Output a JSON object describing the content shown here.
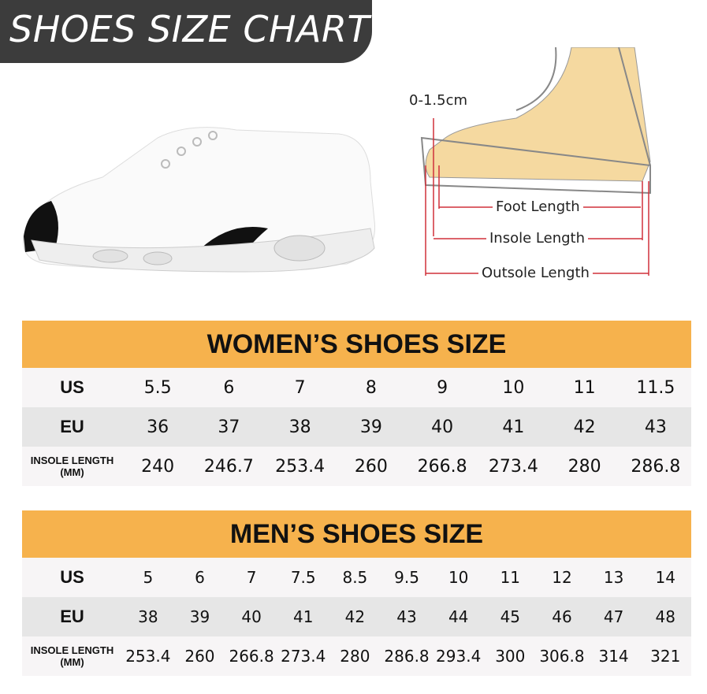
{
  "banner": {
    "title": "SHOES SIZE CHART"
  },
  "diagram": {
    "toe_gap": "0-1.5cm",
    "foot_length": "Foot Length",
    "insole_length": "Insole Length",
    "outsole_length": "Outsole Length"
  },
  "colors": {
    "header": "#f6b24d",
    "banner": "#3c3c3c",
    "measure": "#d0303a"
  },
  "women": {
    "title": "WOMEN’S SHOES SIZE",
    "row_labels": {
      "us": "US",
      "eu": "EU",
      "insole": "INSOLE LENGTH (MM)"
    },
    "us": [
      "5.5",
      "6",
      "7",
      "8",
      "9",
      "10",
      "11",
      "11.5"
    ],
    "eu": [
      "36",
      "37",
      "38",
      "39",
      "40",
      "41",
      "42",
      "43"
    ],
    "insole": [
      "240",
      "246.7",
      "253.4",
      "260",
      "266.8",
      "273.4",
      "280",
      "286.8"
    ]
  },
  "men": {
    "title": "MEN’S SHOES SIZE",
    "row_labels": {
      "us": "US",
      "eu": "EU",
      "insole": "INSOLE LENGTH (MM)"
    },
    "us": [
      "5",
      "6",
      "7",
      "7.5",
      "8.5",
      "9.5",
      "10",
      "11",
      "12",
      "13",
      "14"
    ],
    "eu": [
      "38",
      "39",
      "40",
      "41",
      "42",
      "43",
      "44",
      "45",
      "46",
      "47",
      "48"
    ],
    "insole": [
      "253.4",
      "260",
      "266.8",
      "273.4",
      "280",
      "286.8",
      "293.4",
      "300",
      "306.8",
      "314",
      "321"
    ]
  }
}
